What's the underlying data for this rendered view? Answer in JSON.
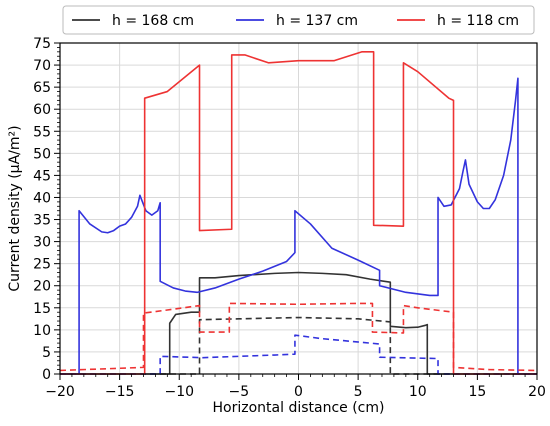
{
  "chart_data": {
    "type": "line",
    "xlabel": "Horizontal distance (cm)",
    "ylabel": "Current density (µA/m²)",
    "xlim": [
      -20,
      20
    ],
    "ylim": [
      0,
      75
    ],
    "xticks": [
      -20,
      -15,
      -10,
      -5,
      0,
      5,
      10,
      15,
      20
    ],
    "yticks": [
      0,
      5,
      10,
      15,
      20,
      25,
      30,
      35,
      40,
      45,
      50,
      55,
      60,
      65,
      70,
      75
    ],
    "grid": true,
    "legend_position": "top, above plot",
    "series": [
      {
        "name": "h = 168 cm",
        "color": "#333333",
        "style": "solid",
        "points": [
          [
            -20,
            0
          ],
          [
            -10.8,
            0
          ],
          [
            -10.8,
            11.5
          ],
          [
            -10.3,
            13.5
          ],
          [
            -9,
            14
          ],
          [
            -8.3,
            14
          ],
          [
            -8.3,
            21.8
          ],
          [
            -7,
            21.8
          ],
          [
            -5,
            22.3
          ],
          [
            -2,
            22.8
          ],
          [
            0,
            23
          ],
          [
            2,
            22.8
          ],
          [
            4,
            22.5
          ],
          [
            6,
            21.5
          ],
          [
            7.7,
            20.8
          ],
          [
            7.7,
            10.8
          ],
          [
            9,
            10.5
          ],
          [
            10,
            10.6
          ],
          [
            10.6,
            11
          ],
          [
            10.8,
            11.2
          ],
          [
            10.8,
            0
          ],
          [
            20,
            0
          ]
        ]
      },
      {
        "name": "h = 168 cm (dashed)",
        "color": "#333333",
        "style": "dashed",
        "points": [
          [
            -20,
            0
          ],
          [
            -8.3,
            0
          ],
          [
            -8.3,
            12.3
          ],
          [
            -5,
            12.5
          ],
          [
            0,
            12.8
          ],
          [
            5,
            12.5
          ],
          [
            7.7,
            11.8
          ],
          [
            7.7,
            0
          ],
          [
            20,
            0
          ]
        ]
      },
      {
        "name": "h = 137 cm",
        "color": "#3333dd",
        "style": "solid",
        "points": [
          [
            -20,
            0
          ],
          [
            -18.4,
            0
          ],
          [
            -18.4,
            37
          ],
          [
            -17.5,
            34
          ],
          [
            -16.5,
            32.2
          ],
          [
            -16,
            32
          ],
          [
            -15.5,
            32.5
          ],
          [
            -15,
            33.5
          ],
          [
            -14.5,
            34
          ],
          [
            -14,
            35.5
          ],
          [
            -13.5,
            38
          ],
          [
            -13.3,
            40.5
          ],
          [
            -12.8,
            37
          ],
          [
            -12.3,
            36
          ],
          [
            -11.8,
            37
          ],
          [
            -11.6,
            38.8
          ],
          [
            -11.6,
            21
          ],
          [
            -10.5,
            19.5
          ],
          [
            -9.5,
            18.8
          ],
          [
            -8.5,
            18.5
          ],
          [
            -7,
            19.5
          ],
          [
            -5,
            21.5
          ],
          [
            -3,
            23.3
          ],
          [
            -1,
            25.5
          ],
          [
            -0.3,
            27.5
          ],
          [
            -0.3,
            37
          ],
          [
            1,
            34
          ],
          [
            2.8,
            28.5
          ],
          [
            5,
            25.8
          ],
          [
            6.8,
            23.5
          ],
          [
            6.8,
            20
          ],
          [
            9,
            18.5
          ],
          [
            11,
            17.8
          ],
          [
            11.7,
            17.8
          ],
          [
            11.7,
            40
          ],
          [
            12.2,
            38
          ],
          [
            12.8,
            38.3
          ],
          [
            13.5,
            42
          ],
          [
            13.8,
            46
          ],
          [
            14,
            48.5
          ],
          [
            14.3,
            43
          ],
          [
            15,
            39
          ],
          [
            15.5,
            37.5
          ],
          [
            16,
            37.5
          ],
          [
            16.5,
            39.5
          ],
          [
            17.2,
            45
          ],
          [
            17.8,
            53
          ],
          [
            18.2,
            62
          ],
          [
            18.4,
            67
          ],
          [
            18.4,
            0
          ],
          [
            20,
            0
          ]
        ]
      },
      {
        "name": "h = 137 cm (dashed)",
        "color": "#3333dd",
        "style": "dashed",
        "points": [
          [
            -20,
            0
          ],
          [
            -11.6,
            0
          ],
          [
            -11.6,
            4
          ],
          [
            -8,
            3.7
          ],
          [
            -5,
            4
          ],
          [
            -2,
            4.3
          ],
          [
            -0.3,
            4.5
          ],
          [
            -0.3,
            8.8
          ],
          [
            2,
            8
          ],
          [
            6.8,
            6.8
          ],
          [
            6.8,
            3.8
          ],
          [
            11.7,
            3.5
          ],
          [
            11.7,
            0
          ],
          [
            20,
            0
          ]
        ]
      },
      {
        "name": "h = 118 cm",
        "color": "#ee3333",
        "style": "solid",
        "points": [
          [
            -20,
            0
          ],
          [
            -12.9,
            0
          ],
          [
            -12.9,
            62.5
          ],
          [
            -11,
            64
          ],
          [
            -8.3,
            70
          ],
          [
            -8.3,
            32.5
          ],
          [
            -5.6,
            32.8
          ],
          [
            -5.6,
            72.3
          ],
          [
            -4.5,
            72.3
          ],
          [
            -2.5,
            70.5
          ],
          [
            0,
            71
          ],
          [
            3,
            71
          ],
          [
            5.3,
            73
          ],
          [
            6.3,
            73
          ],
          [
            6.3,
            33.7
          ],
          [
            8.8,
            33.5
          ],
          [
            8.8,
            70.5
          ],
          [
            10,
            68.5
          ],
          [
            12.6,
            62.5
          ],
          [
            13,
            62
          ],
          [
            13,
            0
          ],
          [
            20,
            0
          ]
        ]
      },
      {
        "name": "h = 118 cm (dashed)",
        "color": "#ee3333",
        "style": "dashed",
        "points": [
          [
            -20,
            0.8
          ],
          [
            -13,
            1.5
          ],
          [
            -13,
            13.8
          ],
          [
            -11,
            14.5
          ],
          [
            -8.3,
            15.5
          ],
          [
            -8.3,
            9.5
          ],
          [
            -5.8,
            9.5
          ],
          [
            -5.8,
            16
          ],
          [
            0,
            15.8
          ],
          [
            5,
            16
          ],
          [
            6.2,
            16
          ],
          [
            6.2,
            9.5
          ],
          [
            8.8,
            9.3
          ],
          [
            8.8,
            15.5
          ],
          [
            10,
            15
          ],
          [
            13,
            14
          ],
          [
            13,
            1.5
          ],
          [
            16,
            1
          ],
          [
            20,
            0.8
          ]
        ]
      }
    ],
    "legend": [
      {
        "label": "h = 168 cm",
        "color": "#333333"
      },
      {
        "label": "h = 137 cm",
        "color": "#3333dd"
      },
      {
        "label": "h = 118 cm",
        "color": "#ee3333"
      }
    ]
  }
}
